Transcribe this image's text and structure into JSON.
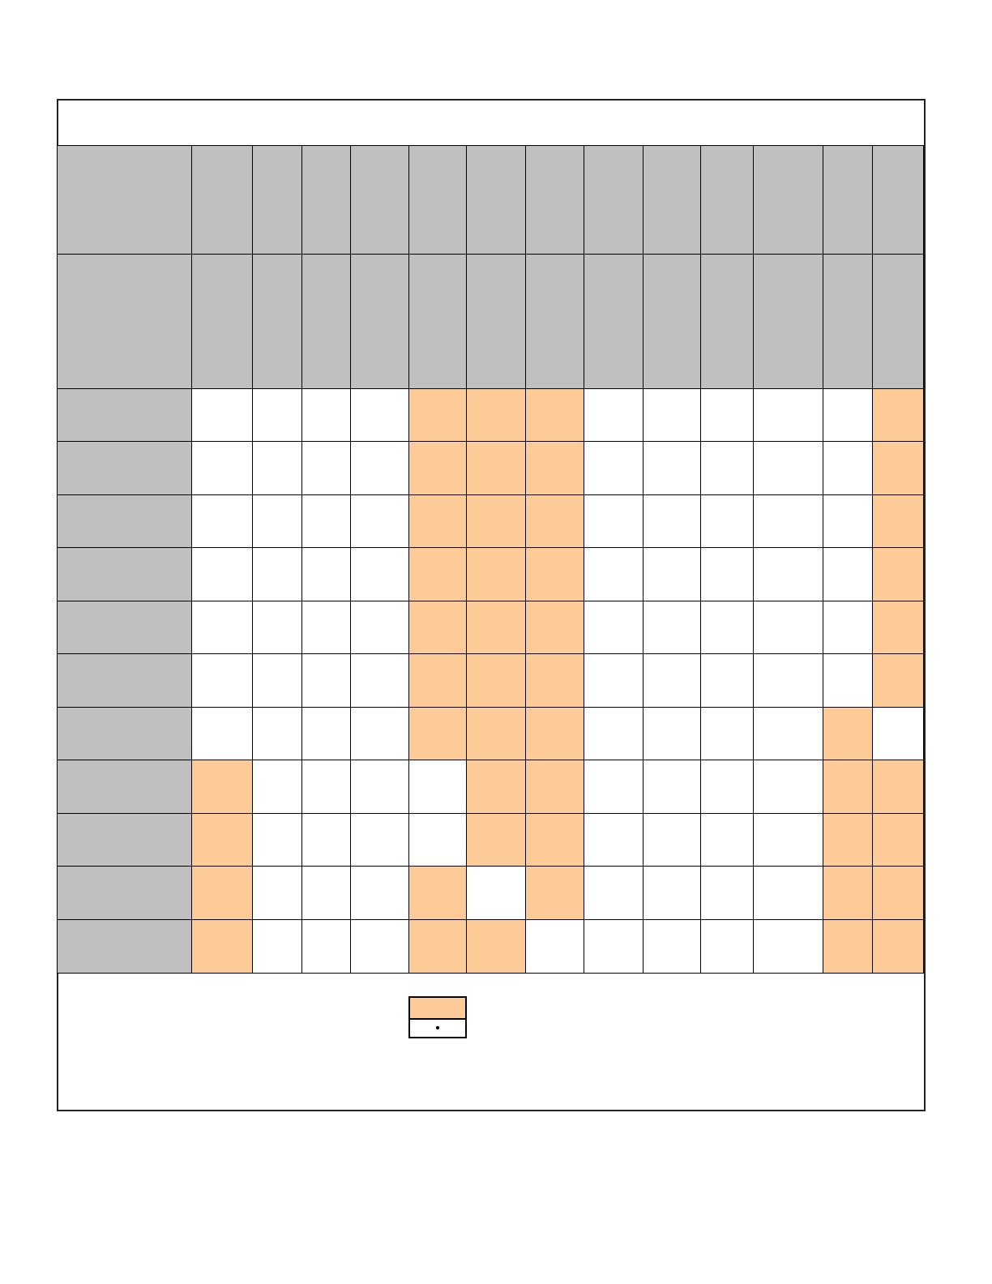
{
  "colors": {
    "header": "#bfbfbf",
    "highlight": "#fdcb98",
    "empty": "#ffffff"
  },
  "matrix": {
    "rows": [
      [
        0,
        0,
        0,
        0,
        1,
        1,
        1,
        0,
        0,
        0,
        0,
        0,
        1
      ],
      [
        0,
        0,
        0,
        0,
        1,
        1,
        1,
        0,
        0,
        0,
        0,
        0,
        1
      ],
      [
        0,
        0,
        0,
        0,
        1,
        1,
        1,
        0,
        0,
        0,
        0,
        0,
        1
      ],
      [
        0,
        0,
        0,
        0,
        1,
        1,
        1,
        0,
        0,
        0,
        0,
        0,
        1
      ],
      [
        0,
        0,
        0,
        0,
        1,
        1,
        1,
        0,
        0,
        0,
        0,
        0,
        1
      ],
      [
        0,
        0,
        0,
        0,
        1,
        1,
        1,
        0,
        0,
        0,
        0,
        0,
        1
      ],
      [
        0,
        0,
        0,
        0,
        1,
        1,
        1,
        0,
        0,
        0,
        0,
        1,
        0
      ],
      [
        1,
        0,
        0,
        0,
        0,
        1,
        1,
        0,
        0,
        0,
        0,
        1,
        1
      ],
      [
        1,
        0,
        0,
        0,
        0,
        1,
        1,
        0,
        0,
        0,
        0,
        1,
        1
      ],
      [
        1,
        0,
        0,
        0,
        1,
        0,
        1,
        0,
        0,
        0,
        0,
        1,
        1
      ],
      [
        1,
        0,
        0,
        0,
        1,
        1,
        0,
        0,
        0,
        0,
        0,
        1,
        1
      ]
    ]
  },
  "legend": {
    "dot_symbol": "•"
  }
}
